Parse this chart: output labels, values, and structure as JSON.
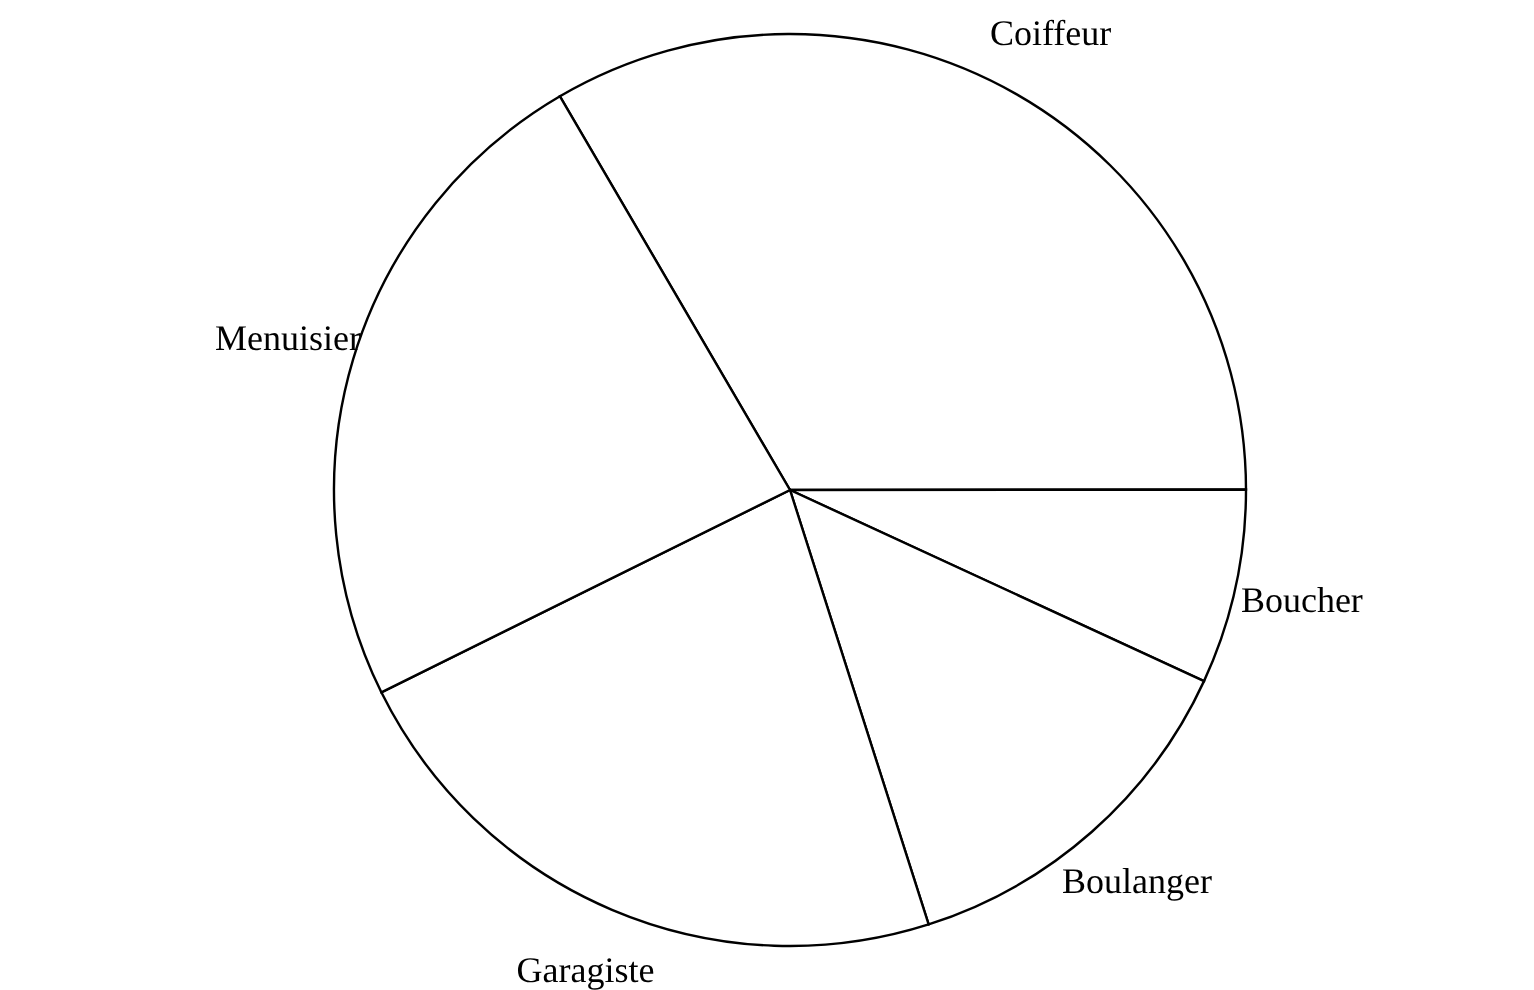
{
  "chart_data": {
    "type": "pie",
    "categories": [
      "Coiffeur",
      "Boucher",
      "Boulanger",
      "Garagiste",
      "Menuisier"
    ],
    "values": [
      33.4,
      6.9,
      13.2,
      22.6,
      23.9
    ],
    "colors": [
      "#ffffff",
      "#ffffff",
      "#ffffff",
      "#ffffff",
      "#ffffff"
    ]
  }
}
